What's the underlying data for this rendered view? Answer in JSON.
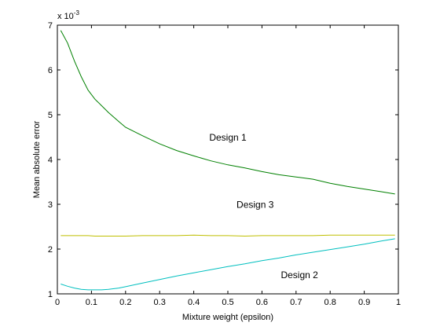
{
  "chart_data": {
    "type": "line",
    "title": "",
    "xlabel": "Mixture weight (epsilon)",
    "ylabel": "Mean absolute error",
    "scale_prefix": "x 10",
    "scale_exponent": "-3",
    "xlim": [
      0,
      1
    ],
    "ylim": [
      1,
      7
    ],
    "grid": false,
    "legend": "none",
    "x_ticks": [
      0,
      0.1,
      0.2,
      0.3,
      0.4,
      0.5,
      0.6,
      0.7,
      0.8,
      0.9,
      1
    ],
    "x_tick_labels": [
      "0",
      "0.1",
      "0.2",
      "0.3",
      "0.4",
      "0.5",
      "0.6",
      "0.7",
      "0.8",
      "0.9",
      "1"
    ],
    "y_ticks": [
      1,
      2,
      3,
      4,
      5,
      6,
      7
    ],
    "y_tick_labels": [
      "1",
      "2",
      "3",
      "4",
      "5",
      "6",
      "7"
    ],
    "x": [
      0.01,
      0.03,
      0.05,
      0.07,
      0.09,
      0.11,
      0.13,
      0.15,
      0.18,
      0.2,
      0.25,
      0.3,
      0.35,
      0.4,
      0.45,
      0.5,
      0.55,
      0.6,
      0.65,
      0.7,
      0.75,
      0.8,
      0.85,
      0.9,
      0.95,
      0.99
    ],
    "series": [
      {
        "color": "#008000",
        "values": [
          6.88,
          6.6,
          6.2,
          5.85,
          5.55,
          5.35,
          5.2,
          5.05,
          4.85,
          4.72,
          4.53,
          4.35,
          4.2,
          4.08,
          3.97,
          3.88,
          3.81,
          3.73,
          3.66,
          3.61,
          3.56,
          3.47,
          3.4,
          3.34,
          3.28,
          3.23
        ]
      },
      {
        "color": "#00bfbf",
        "values": [
          1.22,
          1.17,
          1.13,
          1.1,
          1.09,
          1.09,
          1.09,
          1.1,
          1.13,
          1.16,
          1.24,
          1.32,
          1.4,
          1.47,
          1.54,
          1.61,
          1.67,
          1.74,
          1.8,
          1.87,
          1.93,
          1.99,
          2.05,
          2.11,
          2.18,
          2.23
        ]
      },
      {
        "color": "#bfbf00",
        "values": [
          2.3,
          2.3,
          2.3,
          2.3,
          2.3,
          2.29,
          2.29,
          2.29,
          2.29,
          2.29,
          2.3,
          2.3,
          2.3,
          2.31,
          2.3,
          2.3,
          2.29,
          2.3,
          2.3,
          2.3,
          2.3,
          2.31,
          2.31,
          2.31,
          2.31,
          2.31
        ]
      }
    ],
    "annotations": [
      {
        "text": "Design 1",
        "x": 0.5,
        "y": 4.42
      },
      {
        "text": "Design 3",
        "x": 0.58,
        "y": 2.92
      },
      {
        "text": "Design 2",
        "x": 0.71,
        "y": 1.35
      }
    ]
  }
}
